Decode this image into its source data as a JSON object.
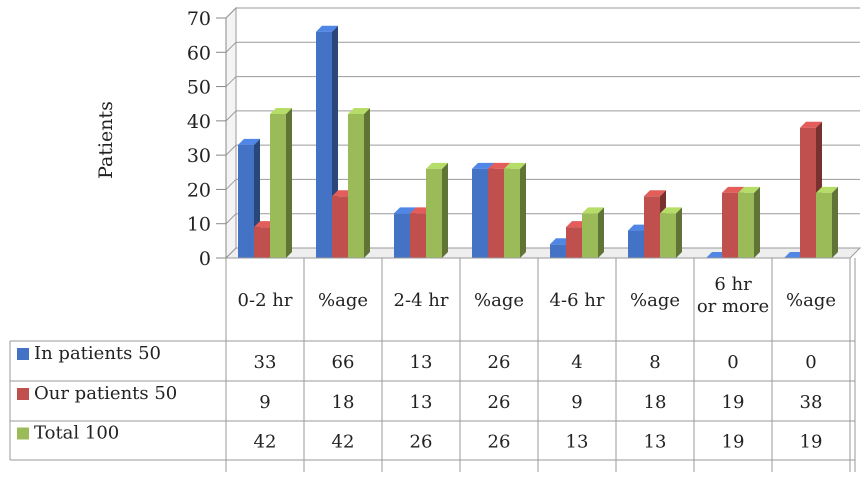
{
  "chart_data": {
    "type": "bar",
    "ylabel": "Patients",
    "ylim": [
      0,
      70
    ],
    "yticks": [
      0,
      10,
      20,
      30,
      40,
      50,
      60,
      70
    ],
    "categories": [
      "0-2 hr",
      "%age",
      "2-4 hr",
      "%age",
      "4-6 hr",
      "%age",
      "6 hr or more",
      "%age"
    ],
    "series": [
      {
        "name": "In patients 50",
        "color": "#4472C4",
        "values": [
          33,
          66,
          13,
          26,
          4,
          8,
          0,
          0
        ]
      },
      {
        "name": "Our patients 50",
        "color": "#C0504D",
        "values": [
          9,
          18,
          13,
          26,
          9,
          18,
          19,
          38
        ]
      },
      {
        "name": "Total 100",
        "color": "#9BBB59",
        "values": [
          42,
          42,
          26,
          26,
          13,
          13,
          19,
          19
        ]
      }
    ],
    "grid": true,
    "legend": "data-table"
  }
}
